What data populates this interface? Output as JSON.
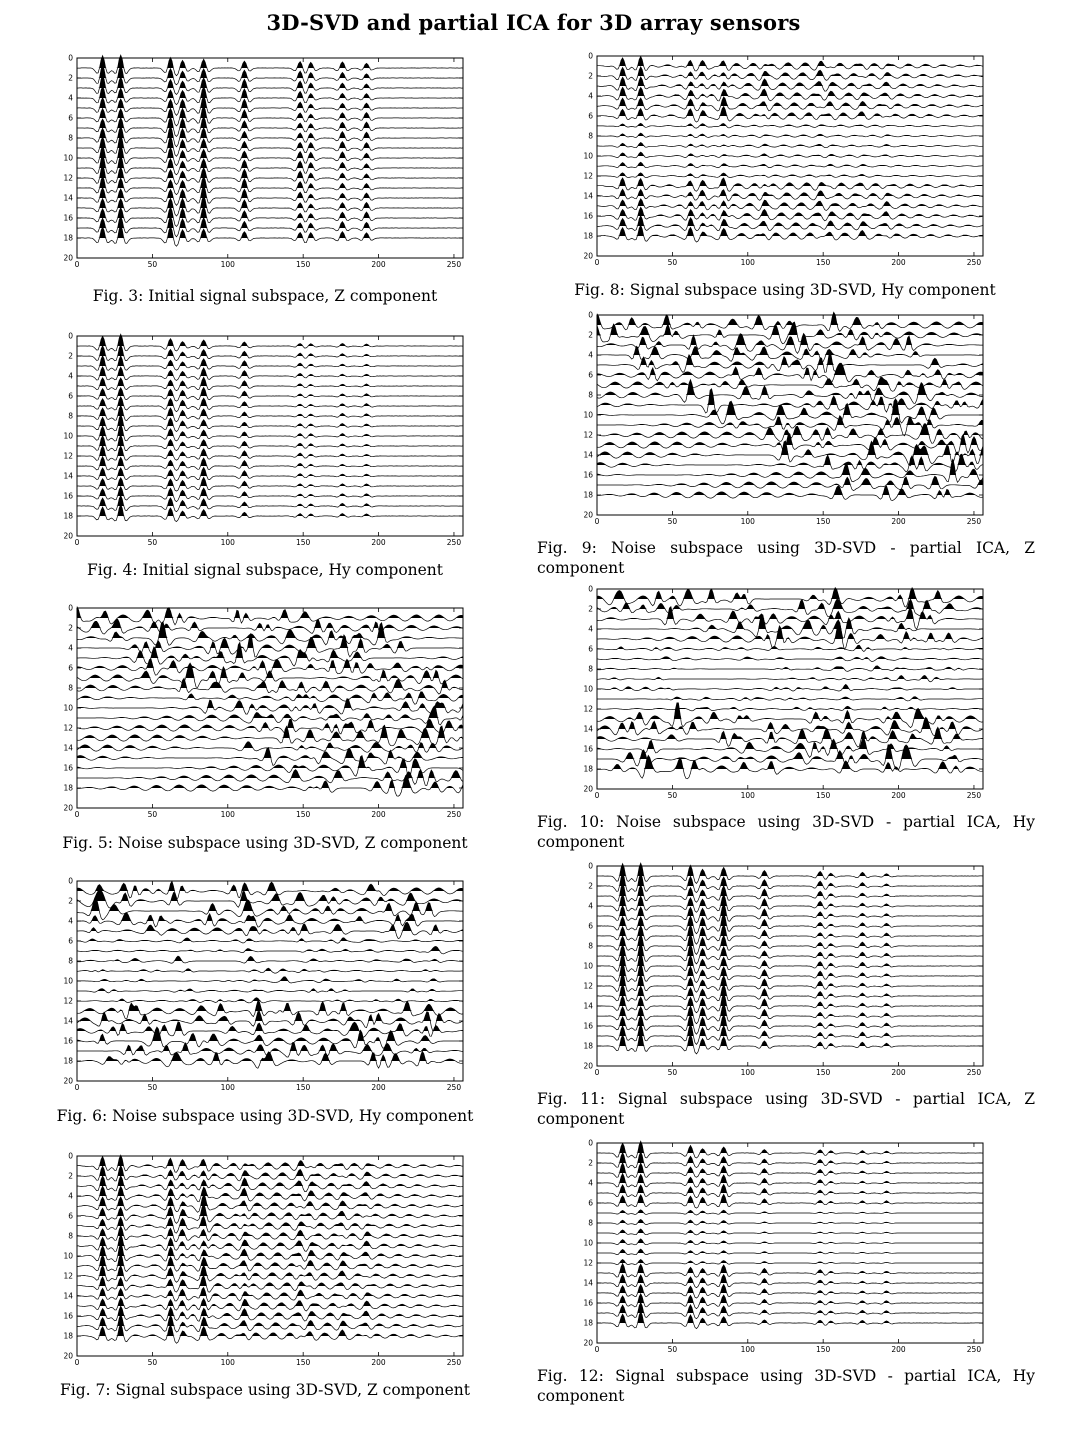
{
  "header": {
    "title": "3D-SVD and partial ICA for 3D array sensors"
  },
  "figures": [
    {
      "caption": "Fig. 3: Initial signal subspace, Z component",
      "kind": "signal",
      "variant": "z_initial"
    },
    {
      "caption": "Fig. 4: Initial signal subspace, Hy component",
      "kind": "signal",
      "variant": "hy_initial"
    },
    {
      "caption": "Fig. 5: Noise subspace using 3D-SVD, Z component",
      "kind": "noise",
      "variant": "z_svd"
    },
    {
      "caption": "Fig. 6: Noise subspace using 3D-SVD, Hy component",
      "kind": "noise",
      "variant": "hy_svd"
    },
    {
      "caption": "Fig. 7: Signal subspace using 3D-SVD, Z component",
      "kind": "signal",
      "variant": "z_svd"
    },
    {
      "caption": "Fig. 8: Signal subspace using 3D-SVD, Hy component",
      "kind": "signal",
      "variant": "hy_svd"
    },
    {
      "caption": "Fig. 9: Noise subspace using 3D-SVD - partial ICA, Z component",
      "kind": "noise",
      "variant": "z_ica"
    },
    {
      "caption": "Fig. 10: Noise subspace using 3D-SVD - partial ICA, Hy component",
      "kind": "noise",
      "variant": "hy_ica"
    },
    {
      "caption": "Fig. 11: Signal subspace using 3D-SVD - partial ICA, Z component",
      "kind": "signal",
      "variant": "z_ica"
    },
    {
      "caption": "Fig. 12: Signal subspace using 3D-SVD - partial ICA, Hy component",
      "kind": "signal",
      "variant": "hy_ica"
    }
  ],
  "chart_data": {
    "type": "seismic-wiggle",
    "x_ticks": [
      "0",
      "50",
      "100",
      "150",
      "200",
      "250"
    ],
    "y_ticks": [
      "0",
      "2",
      "4",
      "6",
      "8",
      "10",
      "12",
      "14",
      "16",
      "18",
      "20"
    ],
    "xlim": [
      0,
      256
    ],
    "ylim": [
      20,
      0
    ],
    "n_traces": 18,
    "signal_arrival_samples": [
      17,
      29,
      62,
      70,
      84,
      111,
      148,
      155,
      176,
      192
    ],
    "variable_area_fill": "positive"
  }
}
